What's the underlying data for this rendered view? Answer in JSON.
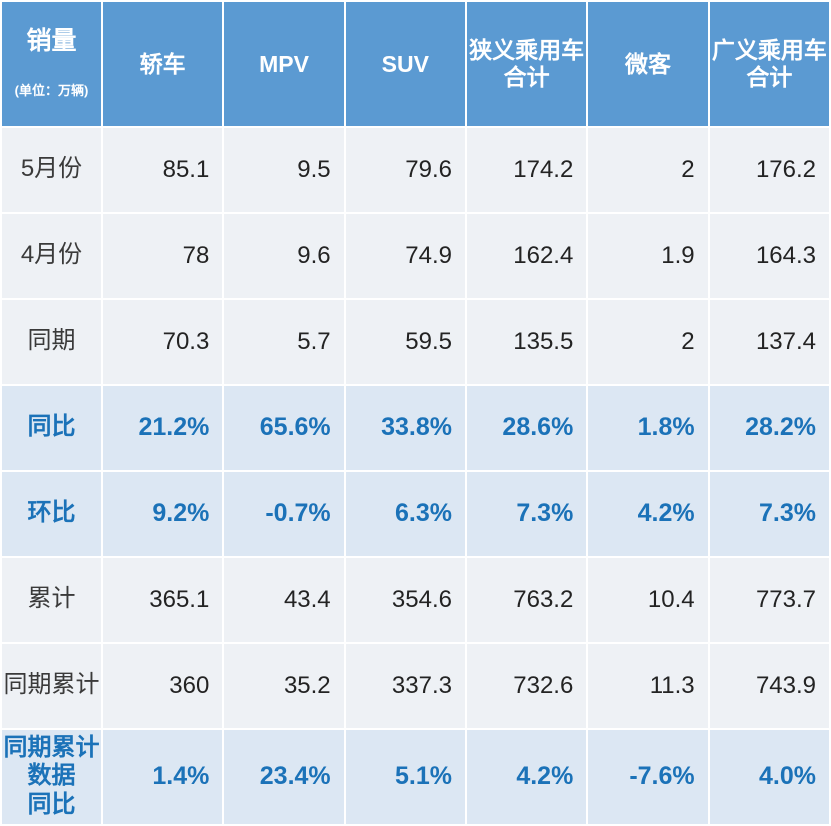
{
  "table": {
    "corner": {
      "title": "销量",
      "unit": "(单位：万辆)"
    },
    "columns": [
      {
        "label": "轿车"
      },
      {
        "label": "MPV"
      },
      {
        "label": "SUV"
      },
      {
        "label": "狭义乘用车\n合计"
      },
      {
        "label": "微客"
      },
      {
        "label": "广义乘用车\n合计"
      }
    ],
    "rows": [
      {
        "label": "5月份",
        "type": "data",
        "values": [
          "85.1",
          "9.5",
          "79.6",
          "174.2",
          "2",
          "176.2"
        ]
      },
      {
        "label": "4月份",
        "type": "data",
        "values": [
          "78",
          "9.6",
          "74.9",
          "162.4",
          "1.9",
          "164.3"
        ]
      },
      {
        "label": "同期",
        "type": "data",
        "values": [
          "70.3",
          "5.7",
          "59.5",
          "135.5",
          "2",
          "137.4"
        ]
      },
      {
        "label": "同比",
        "type": "highlight",
        "values": [
          "21.2%",
          "65.6%",
          "33.8%",
          "28.6%",
          "1.8%",
          "28.2%"
        ]
      },
      {
        "label": "环比",
        "type": "highlight",
        "values": [
          "9.2%",
          "-0.7%",
          "6.3%",
          "7.3%",
          "4.2%",
          "7.3%"
        ]
      },
      {
        "label": "累计",
        "type": "data",
        "values": [
          "365.1",
          "43.4",
          "354.6",
          "763.2",
          "10.4",
          "773.7"
        ]
      },
      {
        "label": "同期累计",
        "type": "data",
        "values": [
          "360",
          "35.2",
          "337.3",
          "732.6",
          "11.3",
          "743.9"
        ]
      },
      {
        "label": "同期累计\n数据\n同比",
        "type": "highlight",
        "values": [
          "1.4%",
          "23.4%",
          "5.1%",
          "4.2%",
          "-7.6%",
          "4.0%"
        ]
      }
    ]
  },
  "colors": {
    "header_bg": "#5b9ad2",
    "row_bg": "#eef1f5",
    "highlight_bg": "#dce7f3",
    "accent_text": "#1b72b8",
    "number_text": "#232323",
    "label_text": "#3a3a3a"
  },
  "chart_data": {
    "type": "table",
    "title": "销量",
    "unit": "万辆",
    "columns": [
      "轿车",
      "MPV",
      "SUV",
      "狭义乘用车合计",
      "微客",
      "广义乘用车合计"
    ],
    "rows": [
      {
        "label": "5月份",
        "values": [
          85.1,
          9.5,
          79.6,
          174.2,
          2,
          176.2
        ]
      },
      {
        "label": "4月份",
        "values": [
          78,
          9.6,
          74.9,
          162.4,
          1.9,
          164.3
        ]
      },
      {
        "label": "同期",
        "values": [
          70.3,
          5.7,
          59.5,
          135.5,
          2,
          137.4
        ]
      },
      {
        "label": "同比",
        "values": [
          "21.2%",
          "65.6%",
          "33.8%",
          "28.6%",
          "1.8%",
          "28.2%"
        ]
      },
      {
        "label": "环比",
        "values": [
          "9.2%",
          "-0.7%",
          "6.3%",
          "7.3%",
          "4.2%",
          "7.3%"
        ]
      },
      {
        "label": "累计",
        "values": [
          365.1,
          43.4,
          354.6,
          763.2,
          10.4,
          773.7
        ]
      },
      {
        "label": "同期累计",
        "values": [
          360,
          35.2,
          337.3,
          732.6,
          11.3,
          743.9
        ]
      },
      {
        "label": "同期累计数据同比",
        "values": [
          "1.4%",
          "23.4%",
          "5.1%",
          "4.2%",
          "-7.6%",
          "4.0%"
        ]
      }
    ],
    "layout": {
      "highlighted_rows": [
        "同比",
        "环比",
        "同期累计数据同比"
      ],
      "grid": true,
      "legend": "none"
    }
  }
}
